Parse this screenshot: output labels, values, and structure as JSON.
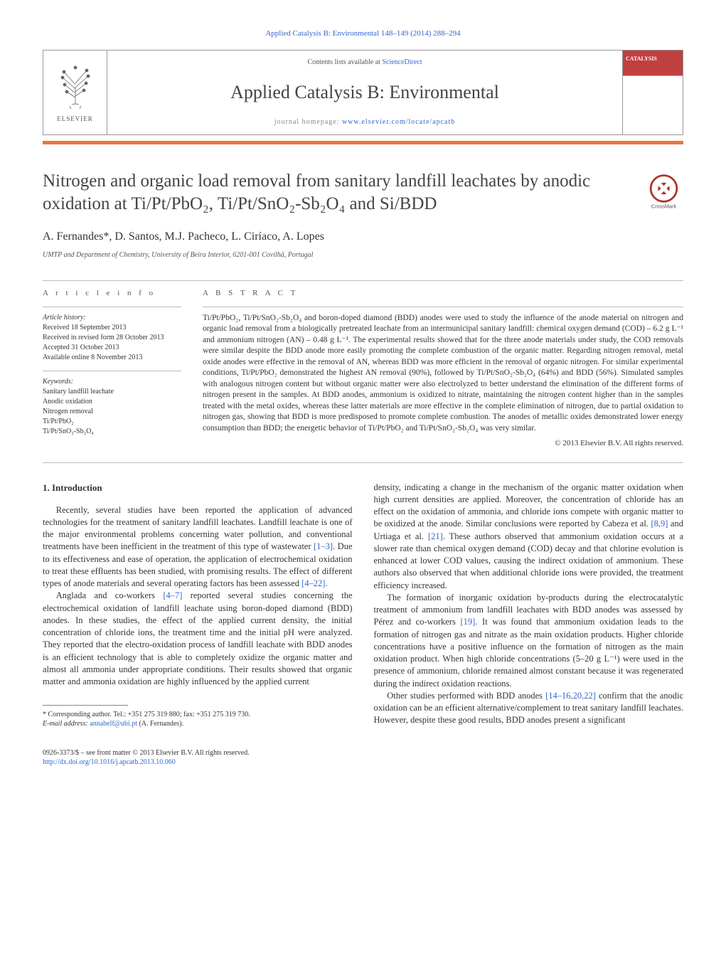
{
  "topLink": "Applied Catalysis B: Environmental 148–149 (2014) 288–294",
  "header": {
    "contentsPrefix": "Contents lists available at ",
    "contentsLink": "ScienceDirect",
    "journalName": "Applied Catalysis B: Environmental",
    "homepagePrefix": "journal homepage: ",
    "homepageLink": "www.elsevier.com/locate/apcatb",
    "elsevierLabel": "ELSEVIER",
    "coverLabel": "CATALYSIS"
  },
  "crossmarkLabel": "CrossMark",
  "title": "Nitrogen and organic load removal from sanitary landfill leachates by anodic oxidation at Ti/Pt/PbO₂, Ti/Pt/SnO₂-Sb₂O₄ and Si/BDD",
  "authors": "A. Fernandes*, D. Santos, M.J. Pacheco, L. Ciríaco, A. Lopes",
  "affiliation": "UMTP and Department of Chemistry, University of Beira Interior, 6201-001 Covilhã, Portugal",
  "articleInfo": {
    "label": "A R T I C L E    I N F O",
    "historyHeading": "Article history:",
    "history": [
      "Received 18 September 2013",
      "Received in revised form 28 October 2013",
      "Accepted 31 October 2013",
      "Available online 8 November 2013"
    ],
    "keywordsHeading": "Keywords:",
    "keywords": [
      "Sanitary landfill leachate",
      "Anodic oxidation",
      "Nitrogen removal",
      "Ti/Pt/PbO₂",
      "Ti/Pt/SnO₂-Sb₂O₄"
    ]
  },
  "abstract": {
    "label": "A B S T R A C T",
    "text": "Ti/Pt/PbO₂, Ti/Pt/SnO₂-Sb₂O₄ and boron-doped diamond (BDD) anodes were used to study the influence of the anode material on nitrogen and organic load removal from a biologically pretreated leachate from an intermunicipal sanitary landfill: chemical oxygen demand (COD) – 6.2 g L⁻¹ and ammonium nitrogen (AN) – 0.48 g L⁻¹. The experimental results showed that for the three anode materials under study, the COD removals were similar despite the BDD anode more easily promoting the complete combustion of the organic matter. Regarding nitrogen removal, metal oxide anodes were effective in the removal of AN, whereas BDD was more efficient in the removal of organic nitrogen. For similar experimental conditions, Ti/Pt/PbO₂ demonstrated the highest AN removal (90%), followed by Ti/Pt/SnO₂-Sb₂O₄ (64%) and BDD (56%). Simulated samples with analogous nitrogen content but without organic matter were also electrolyzed to better understand the elimination of the different forms of nitrogen present in the samples. At BDD anodes, ammonium is oxidized to nitrate, maintaining the nitrogen content higher than in the samples treated with the metal oxides, whereas these latter materials are more effective in the complete elimination of nitrogen, due to partial oxidation to nitrogen gas, showing that BDD is more predisposed to promote complete combustion. The anodes of metallic oxides demonstrated lower energy consumption than BDD; the energetic behavior of Ti/Pt/PbO₂ and Ti/Pt/SnO₂-Sb₂O₄ was very similar.",
    "copyright": "© 2013 Elsevier B.V. All rights reserved."
  },
  "body": {
    "heading": "1.  Introduction",
    "leftParas": [
      "Recently, several studies have been reported the application of advanced technologies for the treatment of sanitary landfill leachates. Landfill leachate is one of the major environmental problems concerning water pollution, and conventional treatments have been inefficient in the treatment of this type of wastewater <span class=\"ref-link\">[1–3]</span>. Due to its effectiveness and ease of operation, the application of electrochemical oxidation to treat these effluents has been studied, with promising results. The effect of different types of anode materials and several operating factors has been assessed <span class=\"ref-link\">[4–22]</span>.",
      "Anglada and co-workers <span class=\"ref-link\">[4–7]</span> reported several studies concerning the electrochemical oxidation of landfill leachate using boron-doped diamond (BDD) anodes. In these studies, the effect of the applied current density, the initial concentration of chloride ions, the treatment time and the initial pH were analyzed. They reported that the electro-oxidation process of landfill leachate with BDD anodes is an efficient technology that is able to completely oxidize the organic matter and almost all ammonia under appropriate conditions. Their results showed that organic matter and ammonia oxidation are highly influenced by the applied current"
    ],
    "rightParas": [
      "density, indicating a change in the mechanism of the organic matter oxidation when high current densities are applied. Moreover, the concentration of chloride has an effect on the oxidation of ammonia, and chloride ions compete with organic matter to be oxidized at the anode. Similar conclusions were reported by Cabeza et al. <span class=\"ref-link\">[8,9]</span> and Urtiaga et al. <span class=\"ref-link\">[21]</span>. These authors observed that ammonium oxidation occurs at a slower rate than chemical oxygen demand (COD) decay and that chlorine evolution is enhanced at lower COD values, causing the indirect oxidation of ammonium. These authors also observed that when additional chloride ions were provided, the treatment efficiency increased.",
      "The formation of inorganic oxidation by-products during the electrocatalytic treatment of ammonium from landfill leachates with BDD anodes was assessed by Pérez and co-workers <span class=\"ref-link\">[19]</span>. It was found that ammonium oxidation leads to the formation of nitrogen gas and nitrate as the main oxidation products. Higher chloride concentrations have a positive influence on the formation of nitrogen as the main oxidation product. When high chloride concentrations (5–20 g L⁻¹) were used in the presence of ammonium, chloride remained almost constant because it was regenerated during the indirect oxidation reactions.",
      "Other studies performed with BDD anodes <span class=\"ref-link\">[14–16,20,22]</span> confirm that the anodic oxidation can be an efficient alternative/complement to treat sanitary landfill leachates. However, despite these good results, BDD anodes present a significant"
    ]
  },
  "footnote": {
    "line1": "* Corresponding author. Tel.: +351 275 319 880; fax: +351 275 319 730.",
    "emailLabel": "E-mail address: ",
    "email": "annabelf@ubi.pt",
    "emailSuffix": " (A. Fernandes)."
  },
  "bottom": {
    "line1": "0926-3373/$ – see front matter © 2013 Elsevier B.V. All rights reserved.",
    "doi": "http://dx.doi.org/10.1016/j.apcatb.2013.10.060"
  }
}
